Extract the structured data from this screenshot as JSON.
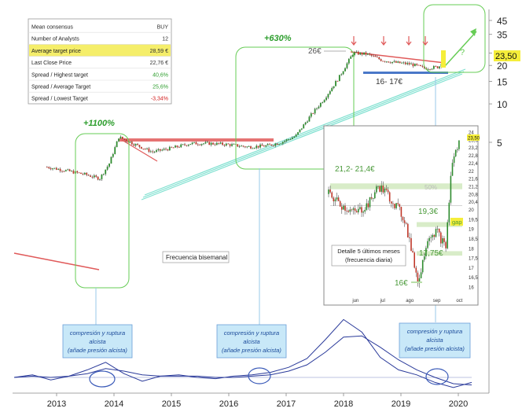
{
  "chart_data": {
    "type": "line",
    "title": "",
    "xlabel": "",
    "ylabel": "",
    "y_scale": "log",
    "ylim": [
      3,
      48
    ],
    "x_ticks": [
      "2013",
      "2014",
      "2015",
      "2016",
      "2017",
      "2018",
      "2019",
      "2020"
    ],
    "y_ticks": [
      45,
      35,
      25,
      20,
      15,
      10,
      5
    ],
    "last_price_label": "23,50",
    "price_series": {
      "x": [
        "2012-11",
        "2013-03",
        "2013-07",
        "2013-10",
        "2013-12",
        "2014-02",
        "2014-06",
        "2014-09",
        "2015-01",
        "2015-05",
        "2015-09",
        "2016-01",
        "2016-05",
        "2016-09",
        "2016-12",
        "2017-03",
        "2017-06",
        "2017-09",
        "2017-12",
        "2018-03",
        "2018-06",
        "2018-09",
        "2018-12",
        "2019-03",
        "2019-06",
        "2019-09",
        "2019-10"
      ],
      "values": [
        3.2,
        3.0,
        2.8,
        2.6,
        3.4,
        5.5,
        4.7,
        4.2,
        4.5,
        4.9,
        4.9,
        4.8,
        4.6,
        4.7,
        5.0,
        5.6,
        8.0,
        11.0,
        16.0,
        25.0,
        24.5,
        22.0,
        21.0,
        20.5,
        19.0,
        19.5,
        23.5
      ]
    },
    "oscillator_series": [
      {
        "values": [
          0,
          0.2,
          -0.2,
          0.1,
          0.6,
          1.2,
          0.3,
          -0.3,
          0.1,
          0.2,
          0,
          -0.1,
          0.1,
          0.2,
          0.4,
          0.8,
          1.5,
          3.0,
          4.6,
          3.6,
          1.6,
          0.6,
          0.2,
          -0.4,
          -0.8,
          -0.4
        ]
      },
      {
        "values": [
          0,
          0.1,
          0,
          0.1,
          0.3,
          0.7,
          0.5,
          0.2,
          0.1,
          0.1,
          0.1,
          0,
          0,
          0.1,
          0.2,
          0.5,
          1.0,
          2.0,
          3.2,
          3.3,
          2.4,
          1.4,
          0.6,
          0,
          -0.5,
          -0.6
        ]
      }
    ],
    "annotations": {
      "pct_1100": "+1100%",
      "pct_630": "+630%",
      "level_26": "26€",
      "support_16_17": "16- 17€",
      "question": "?",
      "freq_label": "Frecuencia bisemanal",
      "compression_1": [
        "compresión y ruptura",
        "alcista",
        "(añade presión alcista)"
      ],
      "compression_2": [
        "compresión y ruptura",
        "alcista",
        "(añade presión alcista)"
      ],
      "compression_3": [
        "compresión y ruptura",
        "alcista",
        "(añade presión alcista)"
      ]
    },
    "inset": {
      "title": [
        "Detalle 5 últimos meses",
        "(frecuencia diaria)"
      ],
      "x_ticks": [
        "jun",
        "jul",
        "ago",
        "sep",
        "oct"
      ],
      "y_ticks": [
        "24",
        "23,6",
        "23,2",
        "22,8",
        "22,4",
        "22",
        "21,6",
        "21,2",
        "20,8",
        "20,4",
        "20",
        "19,5",
        "19",
        "18,5",
        "18",
        "17,5",
        "17",
        "16,5",
        "16"
      ],
      "last_price_label": "23,50",
      "labels": {
        "zone_21": "21,2- 21,4€",
        "pct_50": "50%",
        "level_19_3": "19,3€",
        "gap": "gap",
        "level_17_75": "17,75€",
        "level_16": "16€"
      },
      "series": {
        "x": [
          "2019-05-10",
          "2019-05-25",
          "2019-06-10",
          "2019-06-25",
          "2019-07-05",
          "2019-07-15",
          "2019-07-25",
          "2019-08-05",
          "2019-08-15",
          "2019-08-20",
          "2019-08-30",
          "2019-09-10",
          "2019-09-20",
          "2019-09-27",
          "2019-10-05"
        ],
        "values": [
          20.8,
          20.2,
          19.8,
          20.3,
          21.2,
          20.8,
          20.2,
          19.4,
          17.2,
          16.2,
          18.6,
          18.9,
          18.0,
          22.4,
          23.5
        ]
      }
    }
  },
  "table": {
    "rows": [
      {
        "label": "Mean consensus",
        "value": "BUY"
      },
      {
        "label": "Number of Analysts",
        "value": "12"
      },
      {
        "label": "Average target price",
        "value": "28,59 €"
      },
      {
        "label": "Last Close Price",
        "value": "22,76 €"
      },
      {
        "label": "Spread / Highest target",
        "value": "40,6%"
      },
      {
        "label": "Spread / Average Target",
        "value": "25,6%"
      },
      {
        "label": "Spread / Lowest Target",
        "value": "-3,34%"
      }
    ],
    "value_colors": [
      "#333333",
      "#333333",
      "#333333",
      "#333333",
      "#2e9e2e",
      "#2e9e2e",
      "#d22020"
    ],
    "highlight_color": "#f5ee6a"
  },
  "colors": {
    "candle_up": "#2e8b2e",
    "candle_down": "#c0392b",
    "callout_green": "#66cc55",
    "teal_trend": "#7fe0d0",
    "resistance_red": "#e05a5a",
    "support_blue": "#4a78c8",
    "oscillator": "#2a3a9a",
    "callout_blue_fill": "#c8e8f8"
  }
}
